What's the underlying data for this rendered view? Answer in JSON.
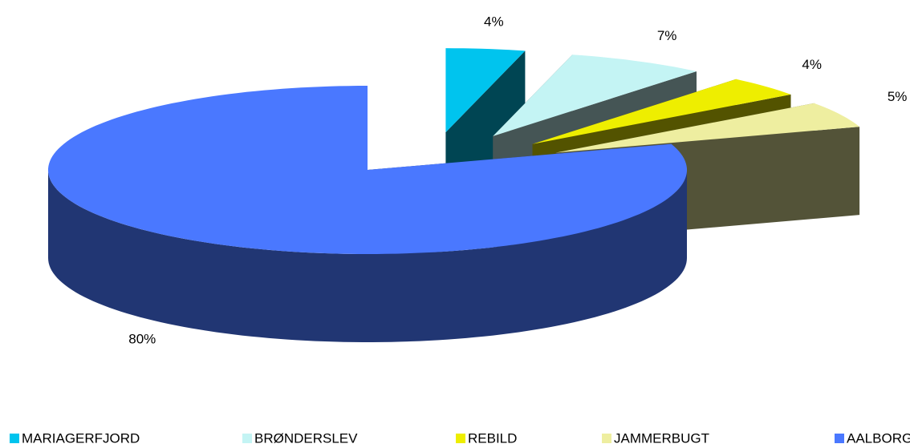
{
  "chart_data": {
    "type": "pie3d",
    "categories": [
      "MARIAGERFJORD",
      "BRØNDERSLEV",
      "REBILD",
      "JAMMERBUGT",
      "AALBORG"
    ],
    "values": [
      4,
      7,
      4,
      5,
      80
    ],
    "value_labels": [
      "4%",
      "7%",
      "4%",
      "5%",
      "80%"
    ],
    "colors": [
      "#00c4ee",
      "#c4f4f4",
      "#eeee00",
      "#eeeea0",
      "#4a78ff"
    ],
    "legend": "bottom"
  }
}
